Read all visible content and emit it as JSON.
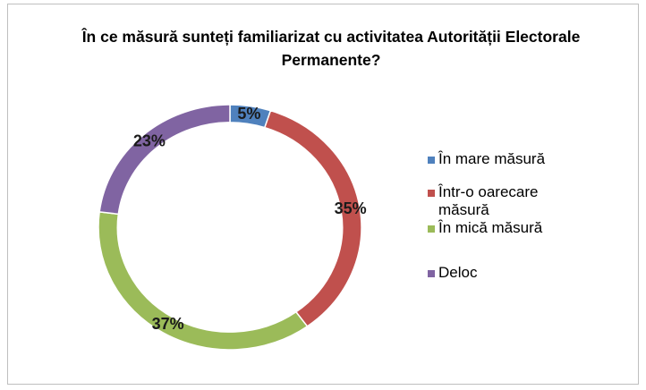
{
  "chart_data": {
    "type": "donut",
    "title": "În ce măsură sunteți familiarizat cu activitatea Autorității Electorale Permanente?",
    "categories": [
      "În mare măsură",
      "Într-o oarecare măsură",
      "În mică măsură",
      "Deloc"
    ],
    "values": [
      5,
      35,
      37,
      23
    ],
    "value_labels": [
      "5%",
      "35%",
      "37%",
      "23%"
    ],
    "colors": [
      "#4f81bd",
      "#c0504d",
      "#9bbb59",
      "#8064a2"
    ],
    "legend": "right"
  }
}
